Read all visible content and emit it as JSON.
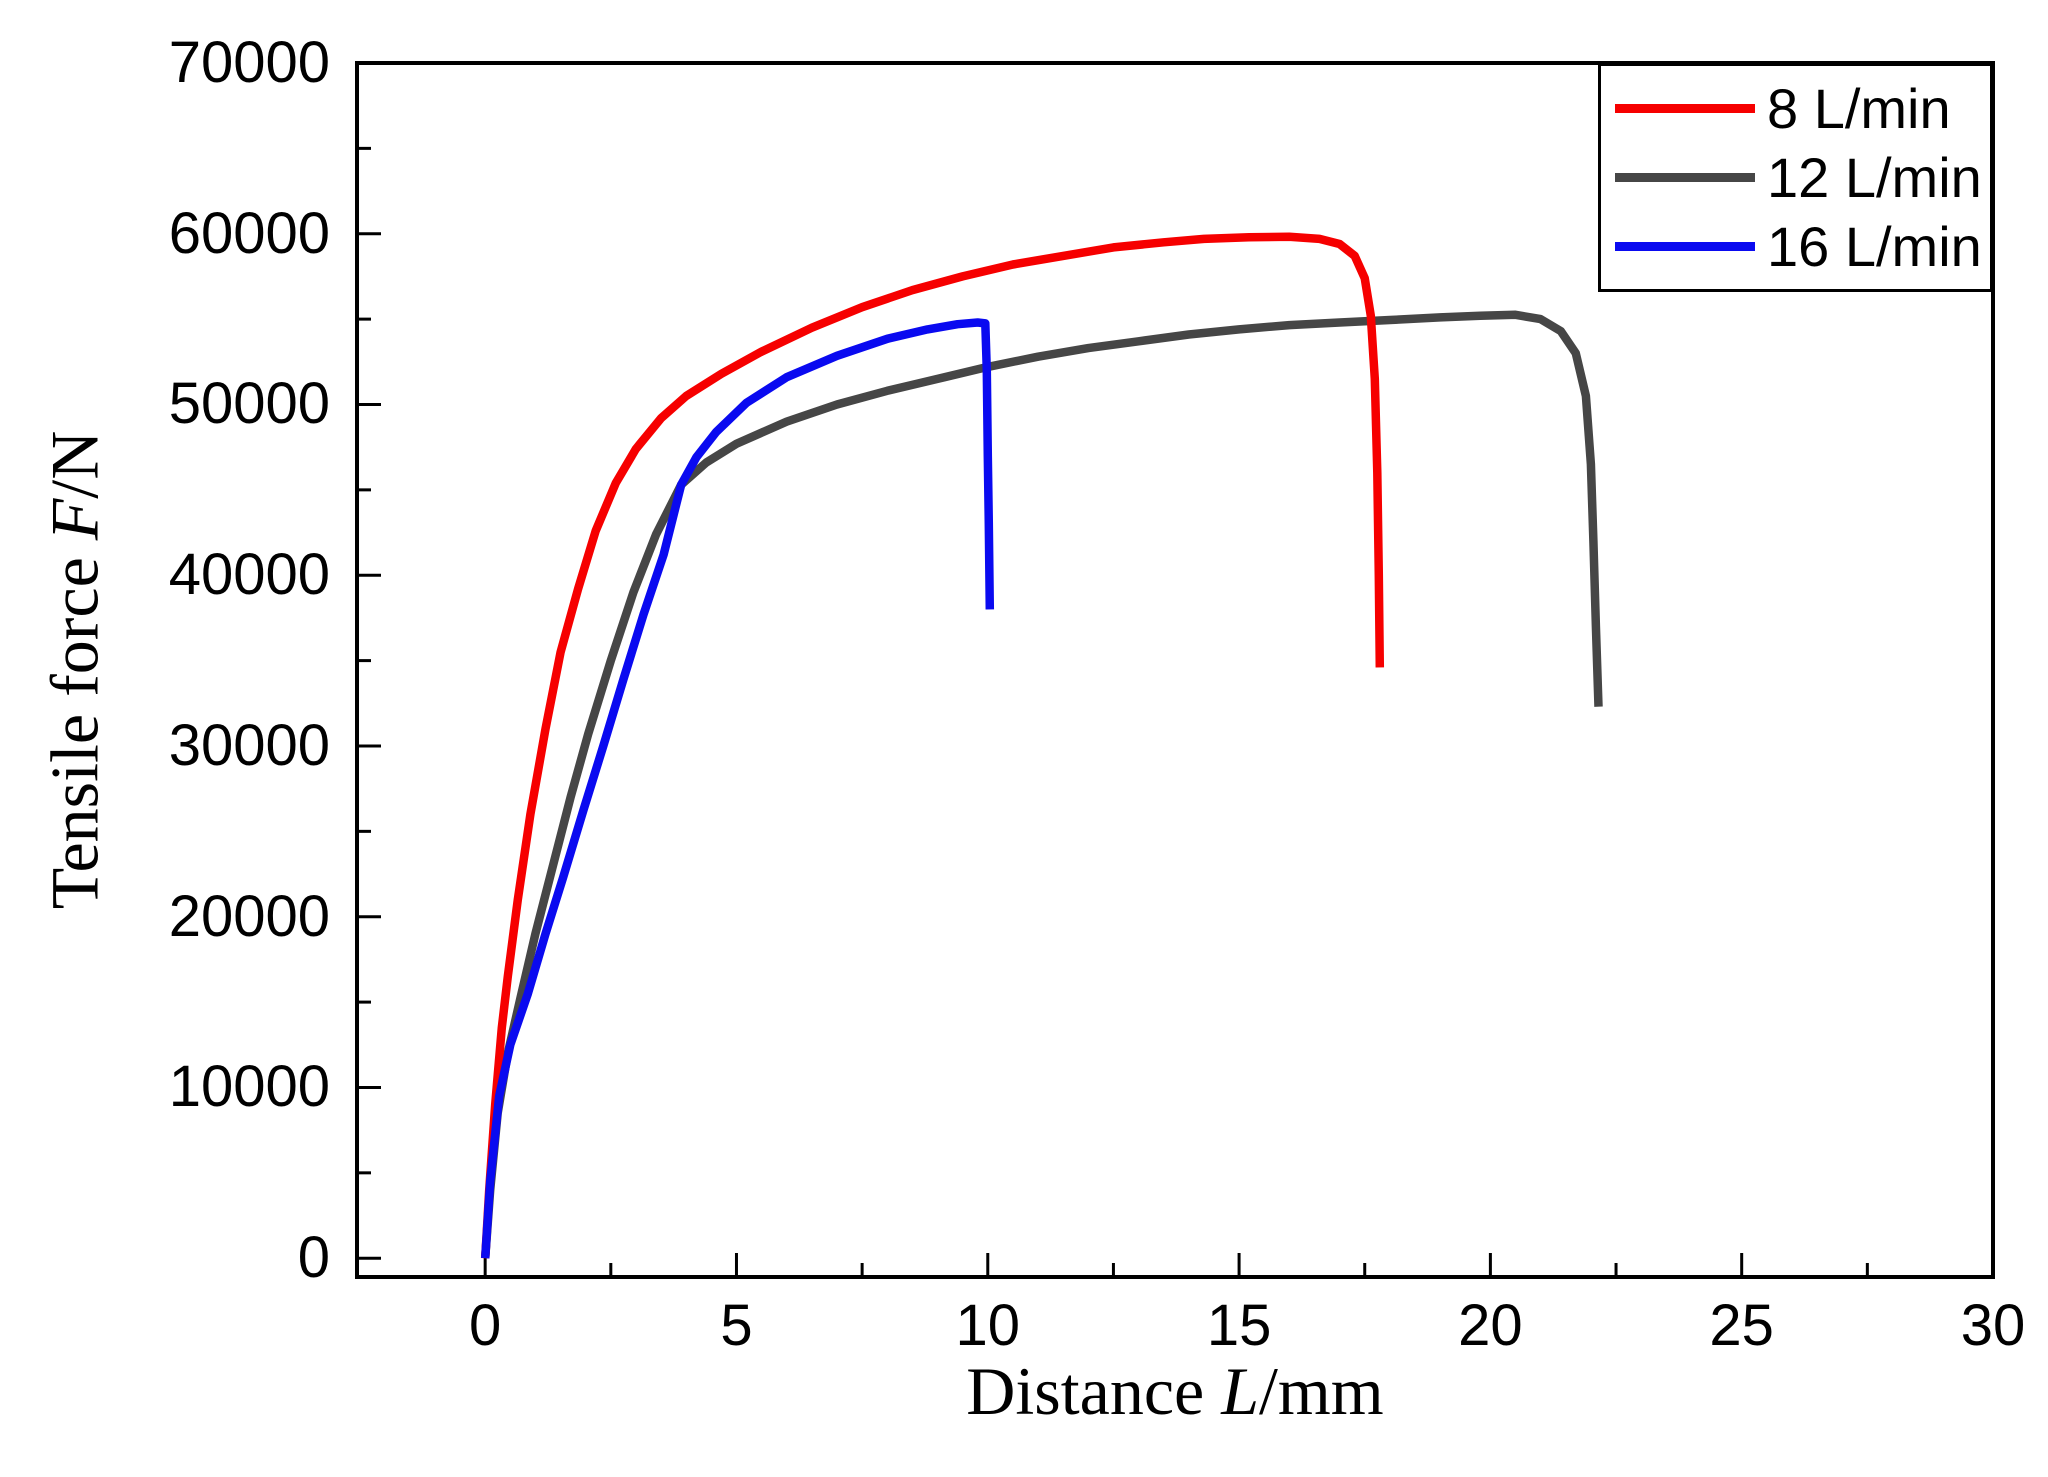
{
  "figure": {
    "background_color": "#ffffff",
    "axis_color": "#000000"
  },
  "chart_data": {
    "type": "line",
    "title": "",
    "xlabel": {
      "prefix": "Distance ",
      "symbol": "L",
      "suffix": "/mm"
    },
    "ylabel": {
      "prefix": "Tensile force ",
      "symbol": "F",
      "suffix": "/N"
    },
    "xlim": [
      -2.55,
      30
    ],
    "ylim": [
      -1100,
      70000
    ],
    "x_major_ticks": [
      0,
      5,
      10,
      15,
      20,
      25,
      30
    ],
    "x_minor_ticks": [
      2.5,
      7.5,
      12.5,
      17.5,
      22.5,
      27.5
    ],
    "y_major_ticks": [
      0,
      10000,
      20000,
      30000,
      40000,
      50000,
      60000,
      70000
    ],
    "y_minor_ticks": [
      5000,
      15000,
      25000,
      35000,
      45000,
      55000,
      65000
    ],
    "grid": false,
    "legend_position": "top-right",
    "draw_order": [
      1,
      0,
      2
    ],
    "series": [
      {
        "name": "8 L/min",
        "color": "#f60000",
        "points": [
          [
            0,
            0
          ],
          [
            0.08,
            4000
          ],
          [
            0.2,
            9000
          ],
          [
            0.33,
            13500
          ],
          [
            0.45,
            16500
          ],
          [
            0.65,
            21000
          ],
          [
            0.9,
            26000
          ],
          [
            1.2,
            31000
          ],
          [
            1.5,
            35500
          ],
          [
            1.85,
            39200
          ],
          [
            2.2,
            42600
          ],
          [
            2.6,
            45400
          ],
          [
            3.0,
            47400
          ],
          [
            3.5,
            49200
          ],
          [
            4.0,
            50500
          ],
          [
            4.7,
            51800
          ],
          [
            5.5,
            53100
          ],
          [
            6.5,
            54500
          ],
          [
            7.5,
            55700
          ],
          [
            8.5,
            56700
          ],
          [
            9.5,
            57500
          ],
          [
            10.5,
            58200
          ],
          [
            11.5,
            58700
          ],
          [
            12.5,
            59200
          ],
          [
            13.5,
            59500
          ],
          [
            14.3,
            59700
          ],
          [
            15.2,
            59800
          ],
          [
            16.0,
            59820
          ],
          [
            16.6,
            59700
          ],
          [
            17.0,
            59400
          ],
          [
            17.3,
            58700
          ],
          [
            17.5,
            57400
          ],
          [
            17.62,
            55200
          ],
          [
            17.7,
            51500
          ],
          [
            17.75,
            46000
          ],
          [
            17.78,
            40000
          ],
          [
            17.8,
            34600
          ]
        ]
      },
      {
        "name": "12 L/min",
        "color": "#464646",
        "points": [
          [
            0,
            0
          ],
          [
            0.1,
            4000
          ],
          [
            0.25,
            8500
          ],
          [
            0.45,
            12000
          ],
          [
            0.7,
            15200
          ],
          [
            1.0,
            19000
          ],
          [
            1.35,
            23000
          ],
          [
            1.7,
            27000
          ],
          [
            2.05,
            30700
          ],
          [
            2.5,
            35000
          ],
          [
            2.95,
            39000
          ],
          [
            3.4,
            42400
          ],
          [
            3.9,
            45300
          ],
          [
            4.4,
            46600
          ],
          [
            5.0,
            47700
          ],
          [
            6.0,
            49000
          ],
          [
            7.0,
            50000
          ],
          [
            8.0,
            50800
          ],
          [
            9.0,
            51500
          ],
          [
            10.0,
            52200
          ],
          [
            11.0,
            52800
          ],
          [
            12.0,
            53300
          ],
          [
            13.0,
            53700
          ],
          [
            14.0,
            54100
          ],
          [
            15.0,
            54400
          ],
          [
            16.0,
            54650
          ],
          [
            17.0,
            54800
          ],
          [
            18.0,
            54950
          ],
          [
            19.0,
            55100
          ],
          [
            19.8,
            55200
          ],
          [
            20.5,
            55250
          ],
          [
            21.0,
            55000
          ],
          [
            21.4,
            54300
          ],
          [
            21.7,
            53000
          ],
          [
            21.9,
            50500
          ],
          [
            22.0,
            46500
          ],
          [
            22.05,
            42000
          ],
          [
            22.1,
            37000
          ],
          [
            22.15,
            32300
          ]
        ]
      },
      {
        "name": "16 L/min",
        "color": "#0a0af0",
        "points": [
          [
            0,
            0
          ],
          [
            0.1,
            4500
          ],
          [
            0.28,
            9500
          ],
          [
            0.5,
            12500
          ],
          [
            0.85,
            15500
          ],
          [
            1.2,
            19000
          ],
          [
            1.55,
            22300
          ],
          [
            1.95,
            26200
          ],
          [
            2.35,
            30000
          ],
          [
            2.75,
            33900
          ],
          [
            3.15,
            37700
          ],
          [
            3.55,
            41200
          ],
          [
            3.9,
            45300
          ],
          [
            4.2,
            46900
          ],
          [
            4.6,
            48400
          ],
          [
            5.2,
            50100
          ],
          [
            6.0,
            51600
          ],
          [
            7.0,
            52850
          ],
          [
            8.0,
            53850
          ],
          [
            8.8,
            54400
          ],
          [
            9.4,
            54700
          ],
          [
            9.8,
            54800
          ],
          [
            9.95,
            54750
          ],
          [
            9.98,
            52000
          ],
          [
            10.0,
            47000
          ],
          [
            10.02,
            43000
          ],
          [
            10.04,
            38000
          ]
        ]
      }
    ]
  }
}
